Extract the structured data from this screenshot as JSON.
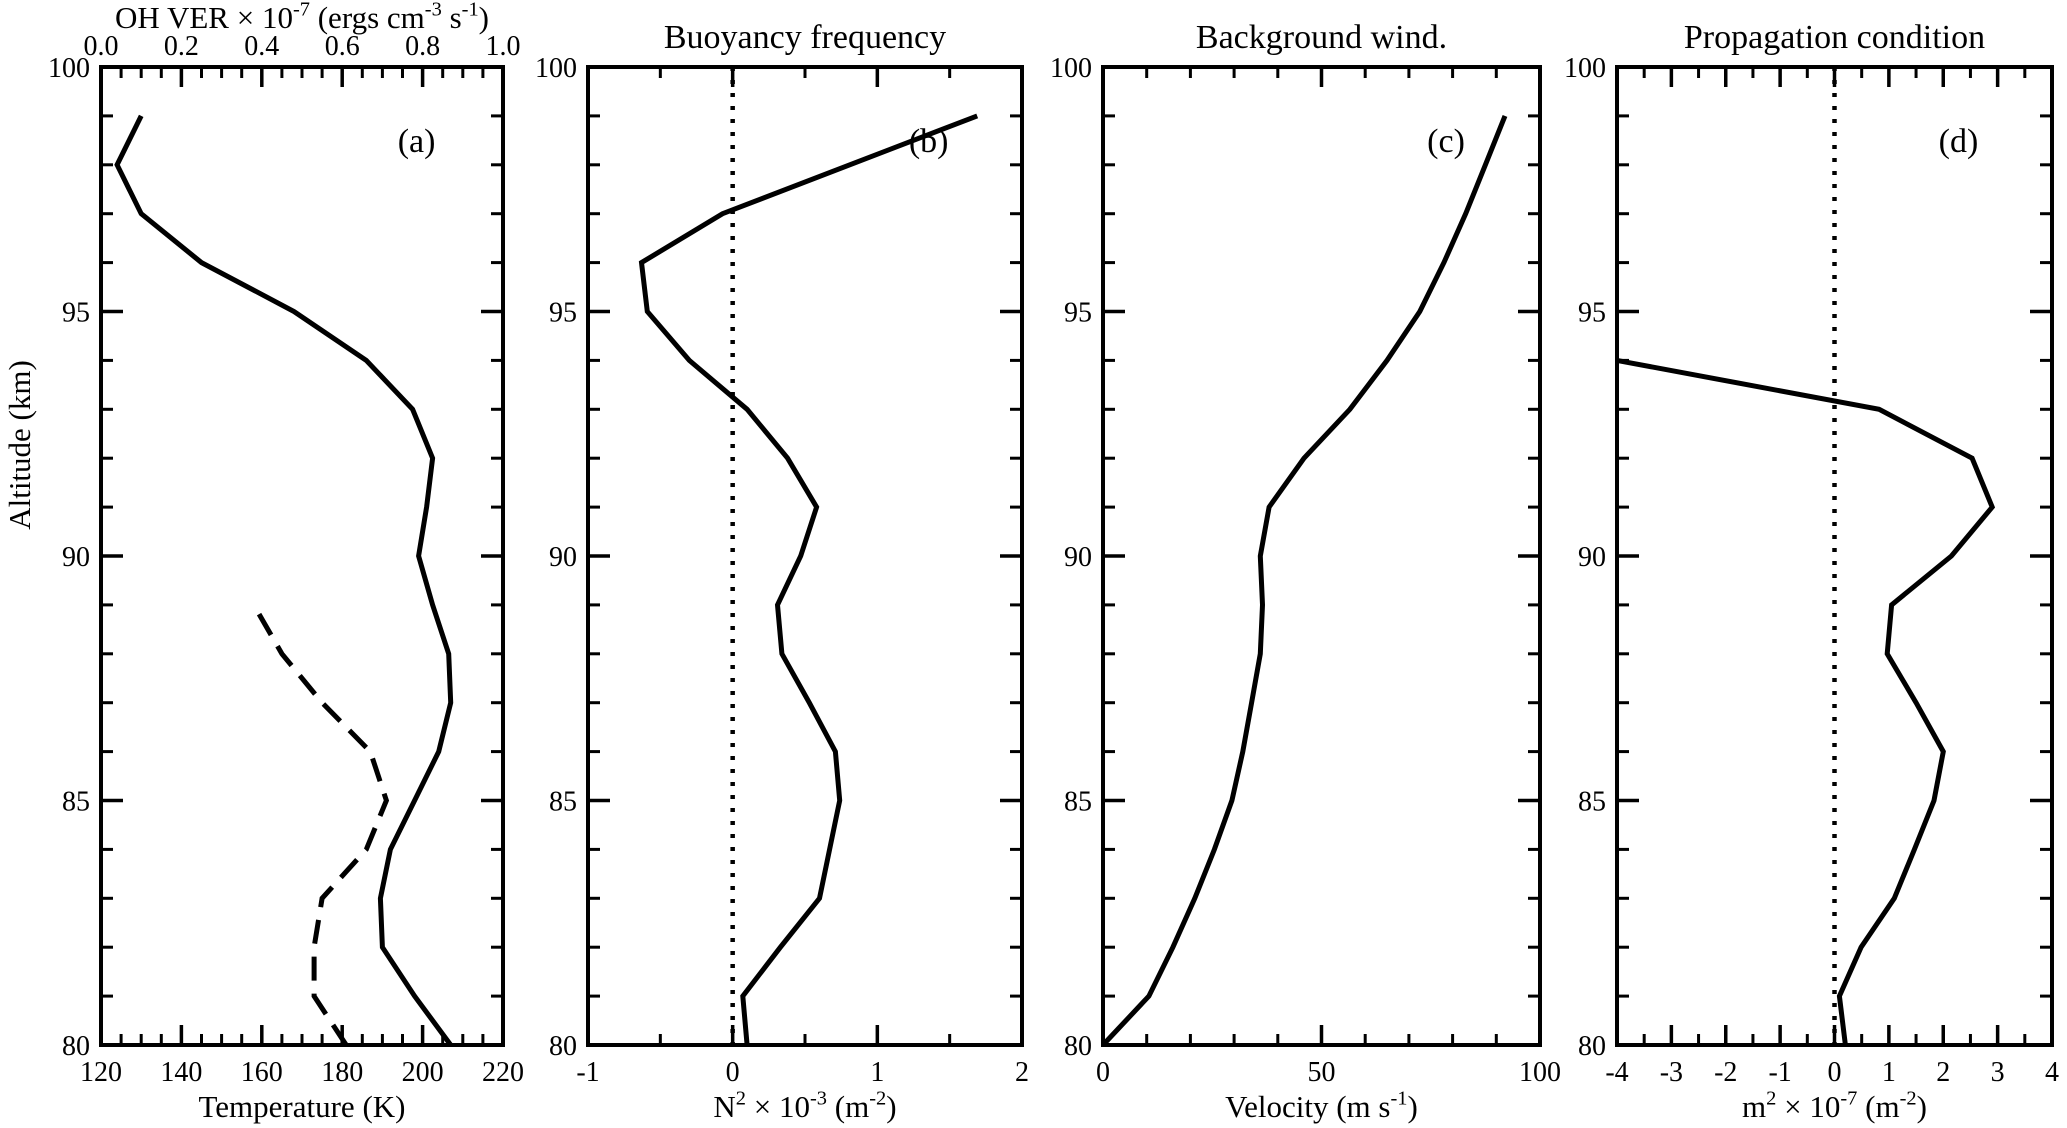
{
  "figure": {
    "background_color": "#ffffff",
    "line_color": "#000000",
    "y_axis": {
      "label": "Altitude (km)",
      "min": 80,
      "max": 100,
      "major_ticks": [
        80,
        85,
        90,
        95,
        100
      ],
      "major_labels": [
        "80",
        "85",
        "90",
        "95",
        "100"
      ],
      "minor_step": 1
    }
  },
  "chart_data": [
    {
      "id": "a",
      "type": "line",
      "letter": "(a)",
      "title": "",
      "x_axis": {
        "min": 120,
        "max": 220,
        "major_ticks": [
          120,
          140,
          160,
          180,
          200,
          220
        ],
        "major_labels": [
          "120",
          "140",
          "160",
          "180",
          "200",
          "220"
        ],
        "minor_step": 5,
        "label_parts": [
          {
            "t": "Temperature (K)"
          }
        ]
      },
      "x_axis_top": {
        "min": 0,
        "max": 1,
        "major_ticks": [
          0,
          0.2,
          0.4,
          0.6,
          0.8,
          1
        ],
        "major_labels": [
          "0.0",
          "0.2",
          "0.4",
          "0.6",
          "0.8",
          "1.0"
        ],
        "minor_step": 0.05,
        "label_parts": [
          {
            "t": "OH VER × 10"
          },
          {
            "t": "-7",
            "sup": true
          },
          {
            "t": " (ergs cm"
          },
          {
            "t": "-3",
            "sup": true
          },
          {
            "t": " s"
          },
          {
            "t": "-1",
            "sup": true
          },
          {
            "t": ")"
          }
        ]
      },
      "zero_line": false,
      "series": [
        {
          "name": "temperature",
          "x_axis": "bottom",
          "line_style": "solid",
          "points": [
            [
              80,
              207
            ],
            [
              81,
              198
            ],
            [
              82,
              190
            ],
            [
              83,
              189.5
            ],
            [
              84,
              192
            ],
            [
              85,
              198
            ],
            [
              86,
              204
            ],
            [
              87,
              207
            ],
            [
              88,
              206.5
            ],
            [
              89,
              202.5
            ],
            [
              90,
              199
            ],
            [
              91,
              201
            ],
            [
              92,
              202.5
            ],
            [
              93,
              197.5
            ],
            [
              94,
              186
            ],
            [
              95,
              168
            ],
            [
              96,
              145
            ],
            [
              97,
              130
            ],
            [
              98,
              124
            ],
            [
              99,
              130
            ]
          ]
        },
        {
          "name": "oh-ver",
          "x_axis": "top",
          "line_style": "dashed",
          "points": [
            [
              80,
              0.61
            ],
            [
              81,
              0.53
            ],
            [
              82,
              0.53
            ],
            [
              83,
              0.55
            ],
            [
              84,
              0.66
            ],
            [
              85,
              0.71
            ],
            [
              86,
              0.67
            ],
            [
              87,
              0.55
            ],
            [
              88,
              0.45
            ],
            [
              89,
              0.38
            ]
          ]
        }
      ]
    },
    {
      "id": "b",
      "type": "line",
      "letter": "(b)",
      "title": "Buoyancy frequency",
      "x_axis": {
        "min": -1,
        "max": 2,
        "major_ticks": [
          -1,
          0,
          1,
          2
        ],
        "major_labels": [
          "-1",
          "0",
          "1",
          "2"
        ],
        "minor_step": 0.5,
        "label_parts": [
          {
            "t": "N"
          },
          {
            "t": "2",
            "sup": true
          },
          {
            "t": " × 10"
          },
          {
            "t": "-3",
            "sup": true
          },
          {
            "t": " (m"
          },
          {
            "t": "-2",
            "sup": true
          },
          {
            "t": ")"
          }
        ]
      },
      "zero_line": true,
      "series": [
        {
          "name": "buoyancy-frequency",
          "x_axis": "bottom",
          "line_style": "solid",
          "points": [
            [
              80,
              0.1
            ],
            [
              81,
              0.07
            ],
            [
              82,
              0.33
            ],
            [
              83,
              0.6
            ],
            [
              84,
              0.67
            ],
            [
              85,
              0.74
            ],
            [
              86,
              0.71
            ],
            [
              87,
              0.53
            ],
            [
              88,
              0.34
            ],
            [
              89,
              0.31
            ],
            [
              90,
              0.47
            ],
            [
              91,
              0.58
            ],
            [
              92,
              0.38
            ],
            [
              93,
              0.1
            ],
            [
              94,
              -0.3
            ],
            [
              95,
              -0.59
            ],
            [
              96,
              -0.63
            ],
            [
              97,
              -0.07
            ],
            [
              98,
              0.81
            ],
            [
              99,
              1.69
            ]
          ]
        }
      ]
    },
    {
      "id": "c",
      "type": "line",
      "letter": "(c)",
      "title": "Background wind.",
      "x_axis": {
        "min": 0,
        "max": 100,
        "major_ticks": [
          0,
          50,
          100
        ],
        "major_labels": [
          "0",
          "50",
          "100"
        ],
        "minor_step": 10,
        "label_parts": [
          {
            "t": "Velocity (m s"
          },
          {
            "t": "-1",
            "sup": true
          },
          {
            "t": ")"
          }
        ]
      },
      "zero_line": false,
      "series": [
        {
          "name": "background-wind",
          "x_axis": "bottom",
          "line_style": "solid",
          "points": [
            [
              80,
              0
            ],
            [
              81,
              10.5
            ],
            [
              82,
              16
            ],
            [
              83,
              21
            ],
            [
              84,
              25.5
            ],
            [
              85,
              29.5
            ],
            [
              86,
              32
            ],
            [
              87,
              34
            ],
            [
              88,
              36
            ],
            [
              89,
              36.5
            ],
            [
              90,
              36
            ],
            [
              91,
              38
            ],
            [
              92,
              46
            ],
            [
              93,
              56.5
            ],
            [
              94,
              65
            ],
            [
              95,
              72.5
            ],
            [
              96,
              78
            ],
            [
              97,
              83
            ],
            [
              98,
              87.5
            ],
            [
              99,
              92
            ]
          ]
        }
      ]
    },
    {
      "id": "d",
      "type": "line",
      "letter": "(d)",
      "title": "Propagation condition",
      "x_axis": {
        "min": -4,
        "max": 4,
        "major_ticks": [
          -4,
          -3,
          -2,
          -1,
          0,
          1,
          2,
          3,
          4
        ],
        "major_labels": [
          "-4",
          "-3",
          "-2",
          "-1",
          "0",
          "1",
          "2",
          "3",
          "4"
        ],
        "minor_step": 0.5,
        "label_parts": [
          {
            "t": "m"
          },
          {
            "t": "2",
            "sup": true
          },
          {
            "t": " × 10"
          },
          {
            "t": "-7",
            "sup": true
          },
          {
            "t": " (m"
          },
          {
            "t": "-2",
            "sup": true
          },
          {
            "t": ")"
          }
        ]
      },
      "zero_line": true,
      "series": [
        {
          "name": "propagation-condition",
          "x_axis": "bottom",
          "line_style": "solid",
          "points": [
            [
              80,
              0.2
            ],
            [
              81,
              0.09
            ],
            [
              82,
              0.49
            ],
            [
              83,
              1.1
            ],
            [
              84,
              1.47
            ],
            [
              85,
              1.83
            ],
            [
              86,
              2.0
            ],
            [
              87,
              1.5
            ],
            [
              88,
              0.97
            ],
            [
              89,
              1.05
            ],
            [
              90,
              2.15
            ],
            [
              91,
              2.9
            ],
            [
              92,
              2.53
            ],
            [
              93,
              0.82
            ],
            [
              94,
              -4.0
            ]
          ]
        }
      ]
    }
  ]
}
